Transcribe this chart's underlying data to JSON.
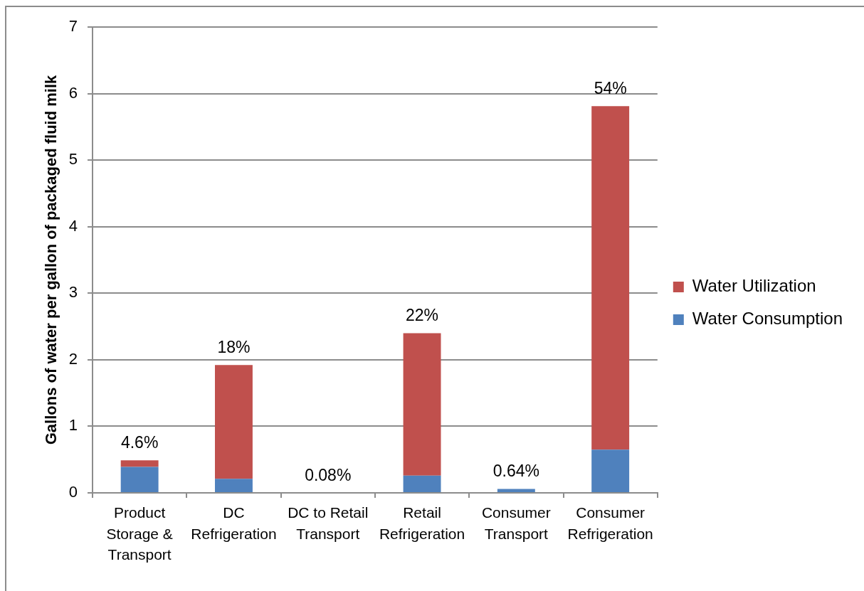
{
  "chart_data": {
    "type": "bar",
    "stacked": true,
    "ylabel": "Gallons of water per gallon of packaged fluid milk",
    "categories": [
      "Product Storage & Transport",
      "DC Refrigeration",
      "DC to Retail Transport",
      "Retail Refrigeration",
      "Consumer Transport",
      "Consumer Refrigeration"
    ],
    "series": [
      {
        "name": "Water Consumption",
        "color": "#4f81bd",
        "values": [
          0.39,
          0.21,
          0,
          0.26,
          0.06,
          0.65
        ]
      },
      {
        "name": "Water Utilization",
        "color": "#c0504d",
        "values": [
          0.1,
          1.71,
          0,
          2.14,
          0,
          5.16
        ]
      }
    ],
    "annotations": [
      {
        "text": "4.6%",
        "x": "Product Storage & Transport",
        "y": 0.49
      },
      {
        "text": "18%",
        "x": "DC Refrigeration",
        "y": 1.92
      },
      {
        "text": "0.08%",
        "x": "DC to Retail Transport",
        "y": 0
      },
      {
        "text": "22%",
        "x": "Retail Refrigeration",
        "y": 2.4
      },
      {
        "text": "0.64%",
        "x": "Consumer Transport",
        "y": 0.06
      },
      {
        "text": "54%",
        "x": "Consumer Refrigeration",
        "y": 5.81
      }
    ],
    "ylim": [
      0,
      7
    ],
    "yticks": [
      0,
      1,
      2,
      3,
      4,
      5,
      6,
      7
    ],
    "grid": "y",
    "legend": "right"
  }
}
